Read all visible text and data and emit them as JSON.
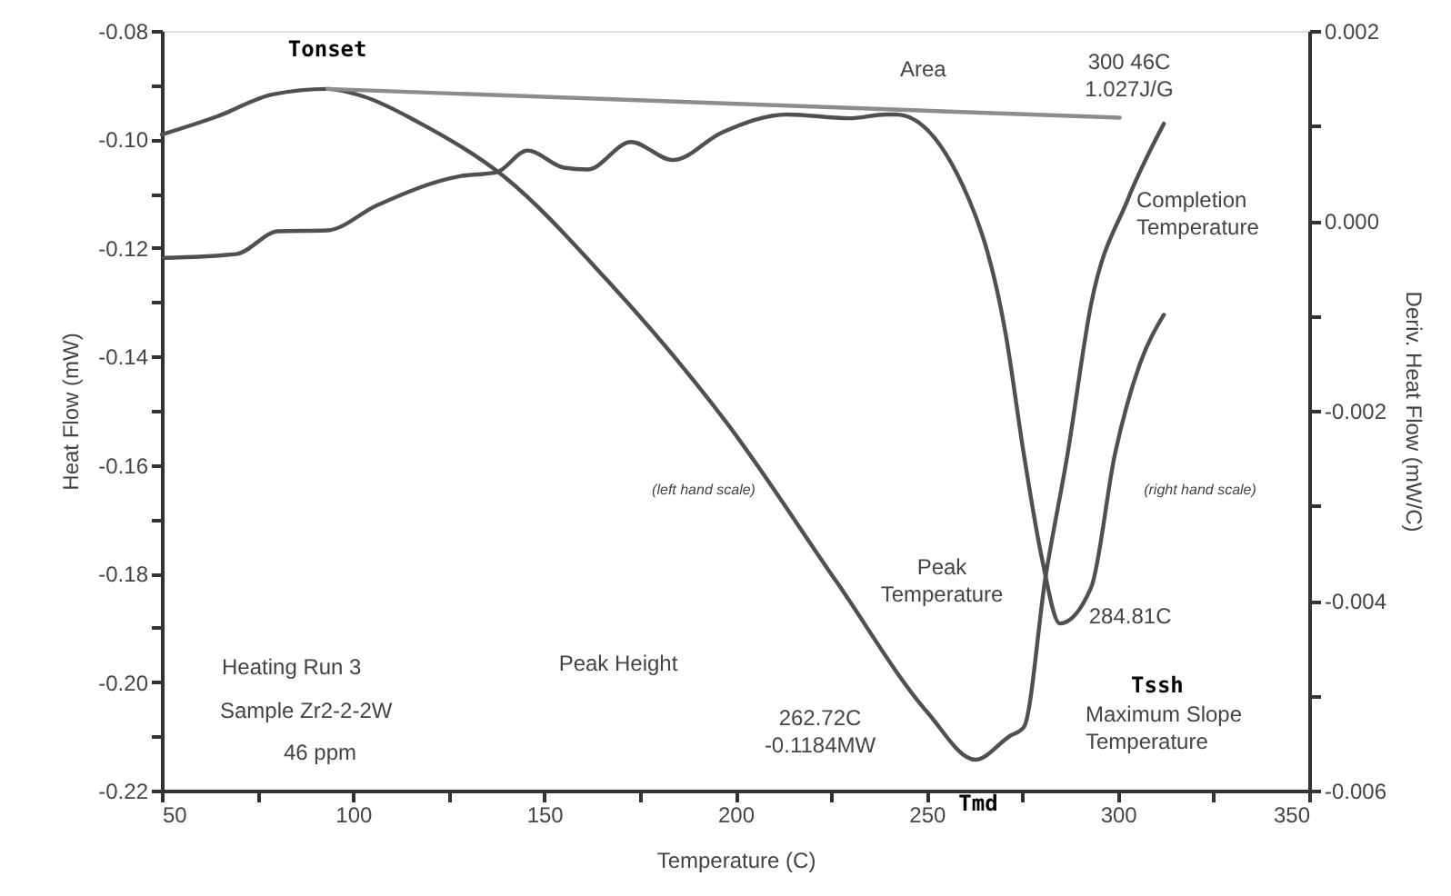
{
  "chart_data": {
    "type": "line",
    "xlabel": "Temperature (C)",
    "ylabel": "Heat Flow (mW)",
    "y2label": "Deriv. Heat Flow (mW/C)",
    "xlim": [
      50,
      350
    ],
    "xticks": [
      50,
      {
        "value": 75,
        "label": null
      },
      100,
      {
        "value": 125,
        "label": null
      },
      150,
      {
        "value": 175,
        "label": null
      },
      200,
      {
        "value": 225,
        "label": null
      },
      250,
      {
        "value": 275,
        "label": null
      },
      300,
      {
        "value": 325,
        "label": null
      },
      350
    ],
    "ylim": [
      -0.22,
      -0.08
    ],
    "yticks": [
      {
        "value": -0.22,
        "label": "-0.22"
      },
      {
        "value": -0.21,
        "label": null
      },
      {
        "value": -0.2,
        "label": "-0.20"
      },
      {
        "value": -0.19,
        "label": null
      },
      {
        "value": -0.18,
        "label": "-0.18"
      },
      {
        "value": -0.17,
        "label": null
      },
      {
        "value": -0.16,
        "label": "-0.16"
      },
      {
        "value": -0.15,
        "label": null
      },
      {
        "value": -0.14,
        "label": "-0.14"
      },
      {
        "value": -0.13,
        "label": null
      },
      {
        "value": -0.12,
        "label": "-0.12"
      },
      {
        "value": -0.11,
        "label": null
      },
      {
        "value": -0.1,
        "label": "-0.10"
      },
      {
        "value": -0.09,
        "label": null
      },
      {
        "value": -0.08,
        "label": "-0.08"
      }
    ],
    "y2lim": [
      -0.006,
      0.002
    ],
    "y2ticks": [
      {
        "value": -0.006,
        "label": "-0.006"
      },
      {
        "value": -0.005,
        "label": null
      },
      {
        "value": -0.004,
        "label": "-0.004"
      },
      {
        "value": -0.003,
        "label": null
      },
      {
        "value": -0.002,
        "label": "-0.002"
      },
      {
        "value": -0.001,
        "label": null
      },
      {
        "value": 0,
        "label": "0.000"
      },
      {
        "value": 0.001,
        "label": null
      },
      {
        "value": 0.002,
        "label": "0.002"
      }
    ],
    "grid": false,
    "marker": "none",
    "line_style": "solid",
    "series": [
      {
        "color": "#505050",
        "x": [
          50,
          64.7,
          79,
          93.3,
          102.8,
          117,
          139.4,
          166,
          197.9,
          226.4,
          250.2,
          262.72,
          271.6,
          275.4,
          281.1,
          286.8,
          293,
          302.5,
          312
        ],
        "values": [
          -0.0991,
          -0.0957,
          -0.0917,
          -0.0907,
          -0.0921,
          -0.0968,
          -0.1068,
          -0.1256,
          -0.1524,
          -0.1815,
          -0.2056,
          -0.2143,
          -0.21,
          -0.2083,
          -0.1805,
          -0.1581,
          -0.1303,
          -0.1112,
          -0.0971
        ]
      },
      {
        "color": "#505050",
        "axis": "y2",
        "x": [
          50.5,
          69.5,
          80.4,
          93.3,
          106.1,
          128,
          137.5,
          145.6,
          155.1,
          161.3,
          172.7,
          183.6,
          196.5,
          213.6,
          229.7,
          239.3,
          242.1,
          261.1,
          270.6,
          275.4,
          280.1,
          284.81,
          293,
          299.2,
          305.8,
          312
        ],
        "values": [
          -0.00039,
          -0.00035,
          -0.00011,
          -0.0001,
          0.00016,
          0.00047,
          0.00051,
          0.00074,
          0.00056,
          0.00054,
          0.00083,
          0.00064,
          0.00093,
          0.00112,
          0.00108,
          0.00112,
          0.00112,
          0.00022,
          -0.00118,
          -0.00246,
          -0.00355,
          -0.00424,
          -0.00386,
          -0.00246,
          -0.0015,
          -0.00099
        ]
      },
      {
        "color": "#8c8c8c",
        "x": [
          93.3,
          300.5
        ],
        "values": [
          -0.0907,
          -0.096
        ]
      }
    ],
    "annotations": [
      {
        "text": "Tonset",
        "x": 93.3,
        "y": -0.0907
      },
      "Area",
      "300 46C\n1.027J/G",
      "Completion\nTemperature",
      "(left hand scale)",
      "(right hand scale)",
      "Peak\nTemperature",
      {
        "text": "284.81C",
        "x": 284.81,
        "y": -0.1892
      },
      "Tssh",
      "Maximum Slope\nTemperature",
      "Peak Height",
      "262.72C\n-0.1184MW",
      "Tmd",
      "Heating Run 3",
      "Sample Zr2-2-2W",
      "46 ppm"
    ]
  }
}
